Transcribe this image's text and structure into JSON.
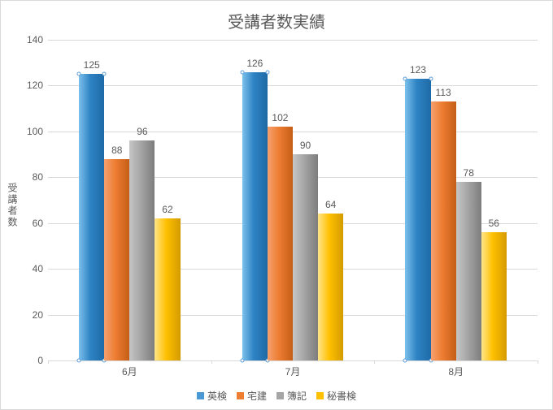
{
  "chart": {
    "type": "bar",
    "title": "受講者数実績",
    "title_fontsize": 20,
    "y_axis_label": "受講者数",
    "label_fontsize": 12,
    "categories": [
      "6月",
      "7月",
      "8月"
    ],
    "series": [
      {
        "name": "英検",
        "values": [
          125,
          126,
          123
        ],
        "grad_left": "#7bc0eb",
        "grad_mid": "#2e83c4",
        "grad_right": "#1e6aa6",
        "legend_color": "#4a98d4",
        "marker_border": "#5b9bd5",
        "markers": true
      },
      {
        "name": "宅建",
        "values": [
          88,
          102,
          113
        ],
        "grad_left": "#f6a070",
        "grad_mid": "#ed7d31",
        "grad_right": "#c55d17",
        "legend_color": "#ed7d31",
        "marker_border": "#ed7d31",
        "markers": false
      },
      {
        "name": "簿記",
        "values": [
          96,
          90,
          78
        ],
        "grad_left": "#c6c6c6",
        "grad_mid": "#a5a5a5",
        "grad_right": "#7d7d7d",
        "legend_color": "#a5a5a5",
        "marker_border": "#a5a5a5",
        "markers": false
      },
      {
        "name": "秘書検",
        "values": [
          62,
          64,
          56
        ],
        "grad_left": "#ffe58a",
        "grad_mid": "#ffc000",
        "grad_right": "#d49b00",
        "legend_color": "#ffc000",
        "marker_border": "#ffc000",
        "markers": false
      }
    ],
    "ylim": [
      0,
      140
    ],
    "ytick_step": 20,
    "background_color": "#ffffff",
    "grid_color": "#d9d9d9",
    "text_color": "#595959",
    "bar_gap_ratio": 0.0,
    "group_gap_ratio": 0.38
  }
}
